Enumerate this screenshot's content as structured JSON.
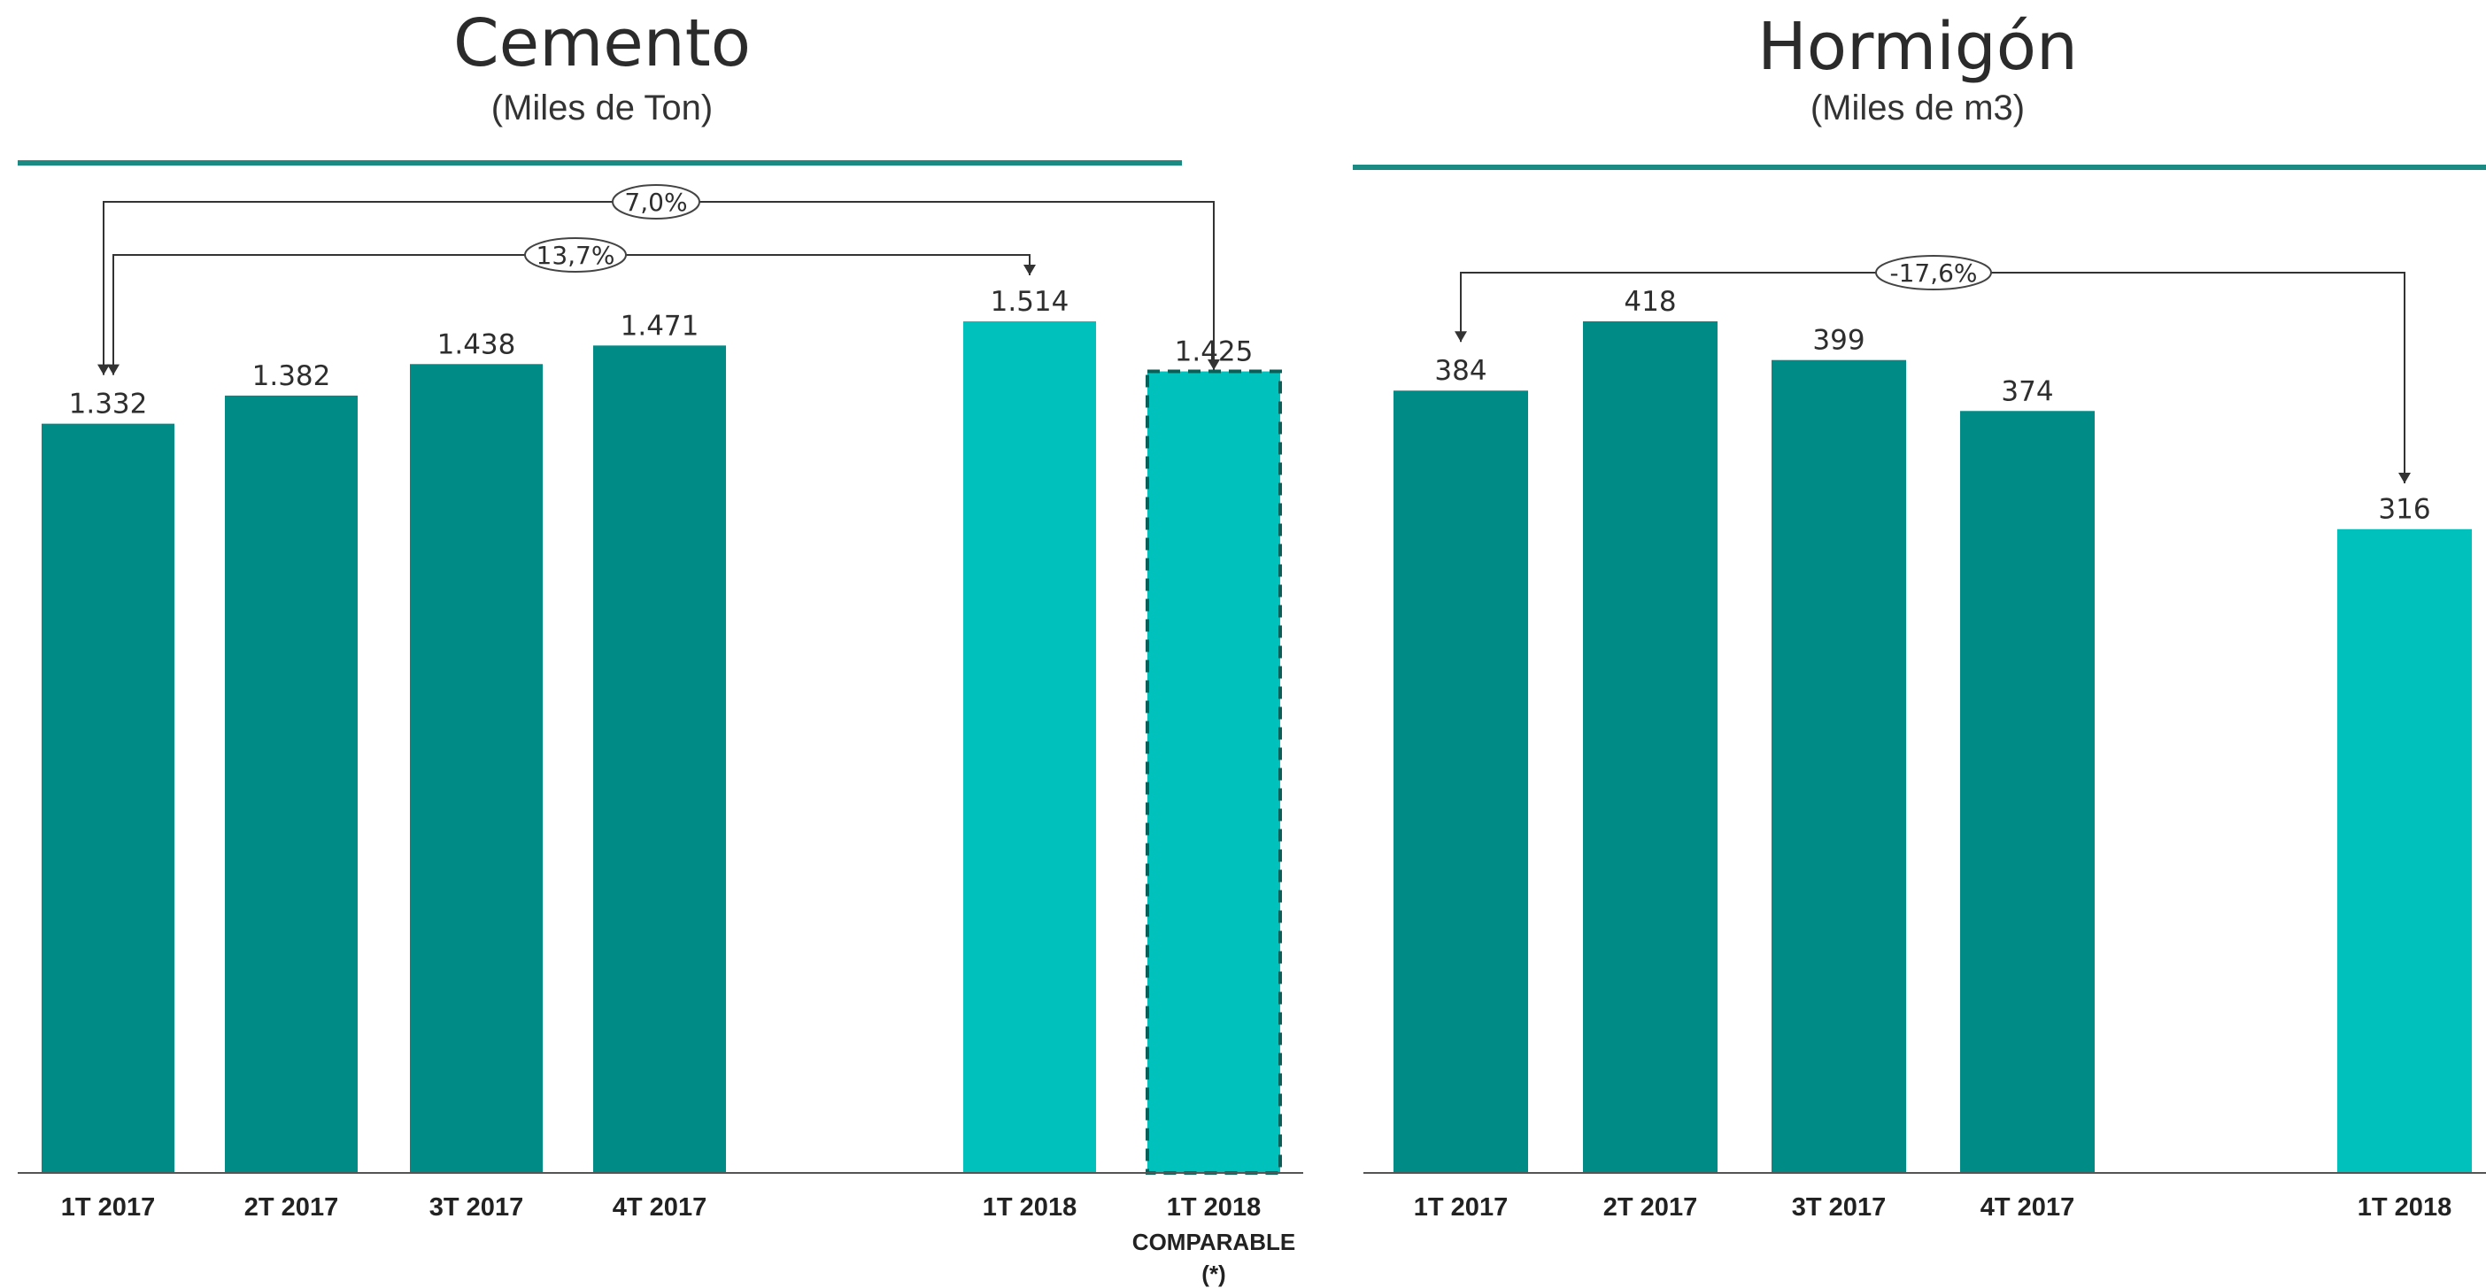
{
  "colors": {
    "bar_2017": "#008b87",
    "bar_2018": "#00c1bc",
    "title_rule": "#1a8a82",
    "axis": "#555555",
    "arrow": "#333333"
  },
  "chart_data": [
    {
      "type": "bar",
      "title": "Cemento",
      "subtitle": "(Miles de Ton)",
      "categories": [
        "1T 2017",
        "2T 2017",
        "3T 2017",
        "4T 2017",
        "1T 2018",
        "1T 2018"
      ],
      "category_notes": [
        "",
        "",
        "",
        "",
        "",
        "COMPARABLE (*)"
      ],
      "values": [
        1332,
        1382,
        1438,
        1471,
        1514,
        1425
      ],
      "value_labels": [
        "1.332",
        "1.382",
        "1.438",
        "1.471",
        "1.514",
        "1.425"
      ],
      "bar_styles": [
        "2017",
        "2017",
        "2017",
        "2017",
        "2018",
        "2018-dashed"
      ],
      "ylim": [
        0,
        1514
      ],
      "grid": false,
      "xlabel": "",
      "ylabel": "",
      "annotations": [
        {
          "label": "7,0%",
          "from": 0,
          "to": 5
        },
        {
          "label": "13,7%",
          "from": 0,
          "to": 4
        }
      ]
    },
    {
      "type": "bar",
      "title": "Hormigón",
      "subtitle": "(Miles de m3)",
      "categories": [
        "1T 2017",
        "2T 2017",
        "3T 2017",
        "4T 2017",
        "1T 2018"
      ],
      "category_notes": [
        "",
        "",
        "",
        "",
        ""
      ],
      "values": [
        384,
        418,
        399,
        374,
        316
      ],
      "value_labels": [
        "384",
        "418",
        "399",
        "374",
        "316"
      ],
      "bar_styles": [
        "2017",
        "2017",
        "2017",
        "2017",
        "2018"
      ],
      "ylim": [
        0,
        418
      ],
      "grid": false,
      "xlabel": "",
      "ylabel": "",
      "annotations": [
        {
          "label": "-17,6%",
          "from": 0,
          "to": 4
        }
      ]
    }
  ]
}
